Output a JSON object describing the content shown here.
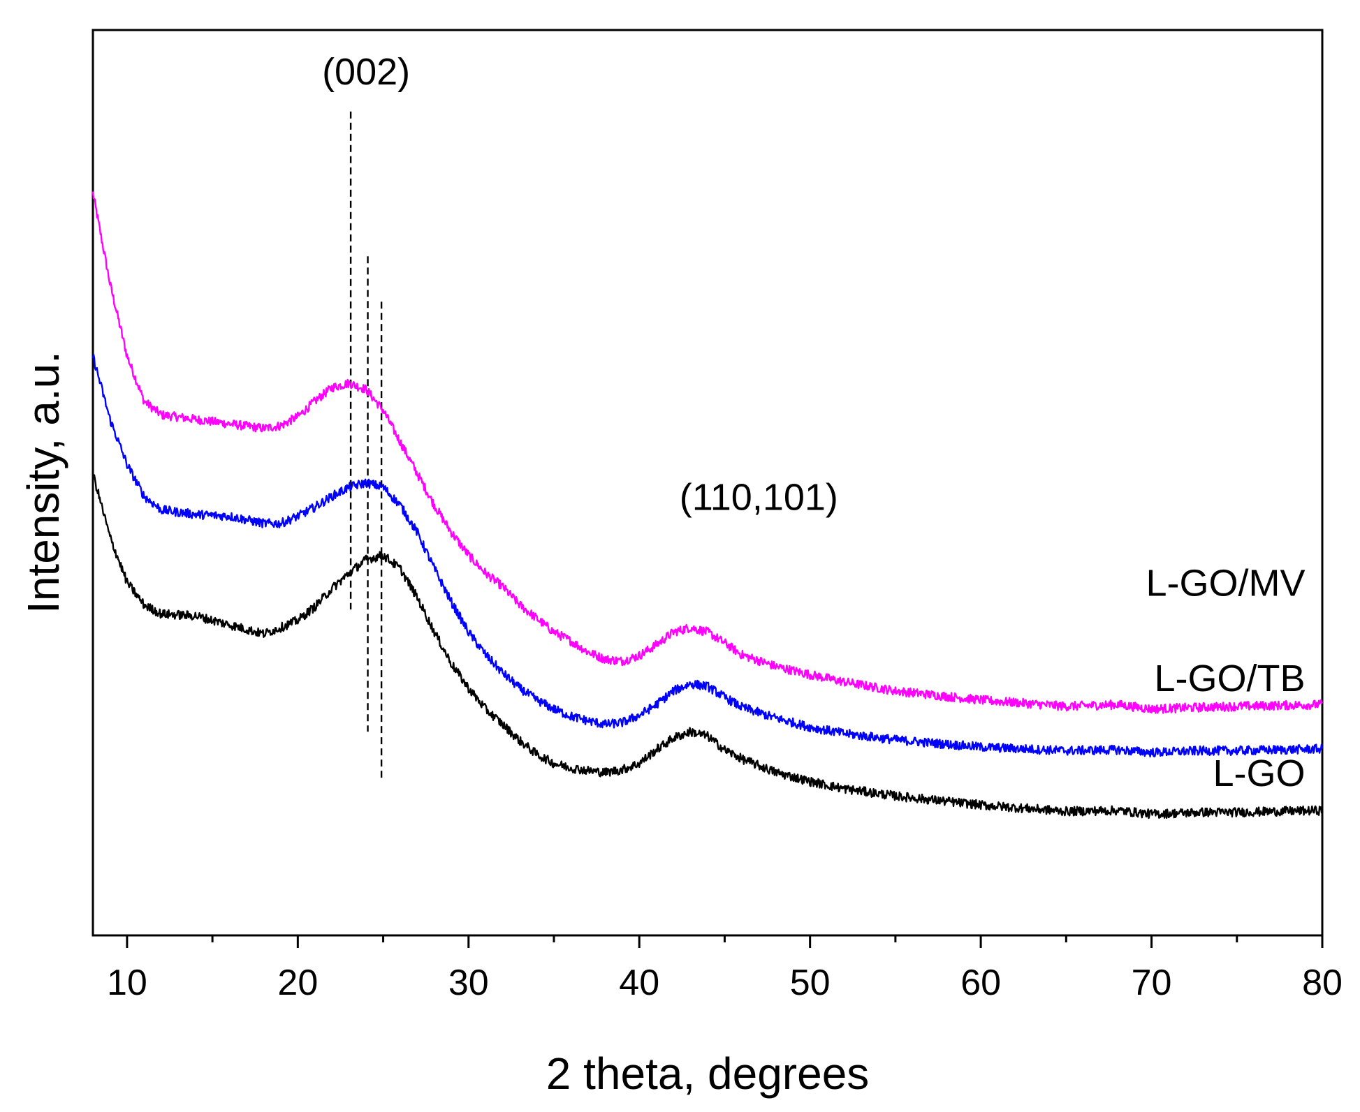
{
  "chart_data": {
    "type": "line",
    "title": "",
    "xlabel": "2 theta, degrees",
    "ylabel": "Intensity, a.u.",
    "xlim": [
      8,
      80
    ],
    "ylim": [
      0,
      100
    ],
    "x_ticks": [
      10,
      20,
      30,
      40,
      50,
      60,
      70,
      80
    ],
    "x_minor_ticks": [
      15,
      25,
      35,
      45,
      55,
      65,
      75
    ],
    "y_ticks_shown": false,
    "grid": false,
    "legend": "inline labels at right end of each curve",
    "series": [
      {
        "name": "L-GO/MV",
        "color": "#ff00ff",
        "x": [
          8,
          8.5,
          9,
          10,
          11,
          12,
          14,
          16,
          18,
          19,
          20,
          21,
          22,
          23,
          24,
          25,
          26,
          27,
          28,
          29,
          30,
          31,
          32,
          33,
          34,
          35,
          36,
          37,
          38,
          39,
          40,
          41,
          42,
          43,
          44,
          45,
          46,
          48,
          50,
          52,
          55,
          60,
          65,
          68,
          70,
          73,
          75,
          80
        ],
        "y": [
          82,
          77,
          72,
          64,
          59,
          57.5,
          57,
          56.5,
          56,
          56.3,
          57.3,
          59,
          60.5,
          61,
          60.3,
          58,
          54.5,
          51,
          47.5,
          44.5,
          42,
          40,
          38.5,
          36.5,
          35,
          33.5,
          32.5,
          31.3,
          30.5,
          30.3,
          30.9,
          32.1,
          33.5,
          34,
          33.5,
          32.3,
          31,
          29.7,
          28.8,
          28,
          27,
          26,
          25.3,
          25.5,
          25,
          25.2,
          25.3,
          25.5
        ]
      },
      {
        "name": "L-GO/TB",
        "color": "#0000ff",
        "x": [
          8,
          8.5,
          9,
          10,
          11,
          12,
          14,
          16,
          18,
          19,
          20,
          21,
          22,
          23,
          24,
          25,
          26,
          27,
          28,
          29,
          30,
          31,
          32,
          33,
          34,
          35,
          36,
          37,
          38,
          39,
          40,
          41,
          42,
          43,
          44,
          45,
          46,
          48,
          50,
          52,
          55,
          60,
          65,
          68,
          70,
          73,
          75,
          80
        ],
        "y": [
          64,
          60.5,
          57,
          52,
          48.5,
          47,
          46.5,
          46.3,
          45.5,
          45.5,
          46.3,
          47.3,
          48.5,
          49.5,
          50,
          49.5,
          47.5,
          44.5,
          40.5,
          36.8,
          33.5,
          31,
          29,
          27.3,
          26,
          25,
          24.2,
          23.7,
          23.3,
          23.5,
          24.3,
          25.5,
          27,
          27.8,
          27.5,
          26.3,
          25.2,
          24,
          23,
          22.3,
          21.6,
          20.8,
          20.4,
          20.5,
          20.2,
          20.4,
          20.4,
          20.6
        ]
      },
      {
        "name": "L-GO",
        "color": "#000000",
        "x": [
          8,
          8.5,
          9,
          10,
          11,
          12,
          14,
          16,
          18,
          19,
          20,
          21,
          22,
          23,
          24,
          25,
          26,
          27,
          28,
          29,
          30,
          31,
          32,
          33,
          34,
          35,
          36,
          37,
          38,
          39,
          40,
          41,
          42,
          43,
          44,
          45,
          46,
          48,
          50,
          52,
          55,
          60,
          65,
          68,
          70,
          73,
          75,
          80
        ],
        "y": [
          51,
          47.5,
          44,
          39,
          36.5,
          35.5,
          35.3,
          34.3,
          33.3,
          34,
          34.8,
          36.3,
          38.3,
          40,
          41.5,
          42,
          40.5,
          37.3,
          33.5,
          30,
          27.3,
          25,
          23.3,
          21.5,
          20,
          19,
          18.5,
          18.2,
          18,
          18.3,
          19,
          20.5,
          21.8,
          22.5,
          22,
          20.5,
          19.5,
          18,
          17,
          16.2,
          15.4,
          14.4,
          13.7,
          13.8,
          13.4,
          13.6,
          13.6,
          13.8
        ]
      }
    ],
    "reference_lines": [
      {
        "x": 23.1,
        "y_from": 36,
        "y_to": 91
      },
      {
        "x": 24.1,
        "y_from": 22.5,
        "y_to": 75
      },
      {
        "x": 24.9,
        "y_from": 17,
        "y_to": 70
      }
    ],
    "annotations": [
      {
        "text": "(002)",
        "x": 24,
        "y": 94
      },
      {
        "text": "(110,101)",
        "x": 47,
        "y": 47
      }
    ],
    "series_labels": [
      {
        "text": "L-GO/MV",
        "x": 79,
        "y": 37.5
      },
      {
        "text": "L-GO/TB",
        "x": 79,
        "y": 27
      },
      {
        "text": "L-GO",
        "x": 79,
        "y": 16.5
      }
    ]
  }
}
